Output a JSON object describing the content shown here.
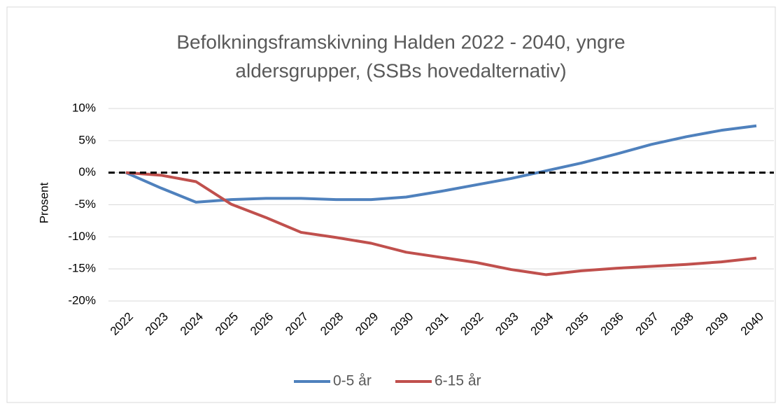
{
  "chart_data": {
    "type": "line",
    "title": "Befolkningsframskivning Halden 2022 - 2040, yngre aldersgrupper, (SSBs hovedalternativ)",
    "title_lines": [
      "Befolkningsframskivning Halden 2022 - 2040, yngre",
      "aldersgrupper, (SSBs hovedalternativ)"
    ],
    "y_label": "Prosent",
    "categories": [
      "2022",
      "2023",
      "2024",
      "2025",
      "2026",
      "2027",
      "2028",
      "2029",
      "2030",
      "2031",
      "2032",
      "2033",
      "2034",
      "2035",
      "2036",
      "2037",
      "2038",
      "2039",
      "2040"
    ],
    "series": [
      {
        "name": "0-5 år",
        "color": "#4f81bd",
        "values": [
          0,
          -2.4,
          -4.6,
          -4.2,
          -4.0,
          -4.0,
          -4.2,
          -4.2,
          -3.8,
          -2.9,
          -1.9,
          -0.9,
          0.3,
          1.5,
          2.9,
          4.4,
          5.6,
          6.6,
          7.3
        ]
      },
      {
        "name": "6-15 år",
        "color": "#c0504d",
        "values": [
          0,
          -0.4,
          -1.4,
          -4.9,
          -7.0,
          -9.3,
          -10.1,
          -11.0,
          -12.4,
          -13.2,
          -14.0,
          -15.1,
          -15.9,
          -15.3,
          -14.9,
          -14.6,
          -14.3,
          -13.9,
          -13.3
        ]
      }
    ],
    "ylim": [
      -20,
      10
    ],
    "yticks": [
      {
        "value": -20,
        "label": "-20%"
      },
      {
        "value": -15,
        "label": "-15%"
      },
      {
        "value": -10,
        "label": "-10%"
      },
      {
        "value": -5,
        "label": "-5%"
      },
      {
        "value": 0,
        "label": "0%"
      },
      {
        "value": 5,
        "label": "5%"
      },
      {
        "value": 10,
        "label": "10%"
      }
    ],
    "grid": true,
    "reference_line": {
      "value": 0,
      "style": "dashed",
      "color": "#000000"
    },
    "legend": "bottom"
  }
}
